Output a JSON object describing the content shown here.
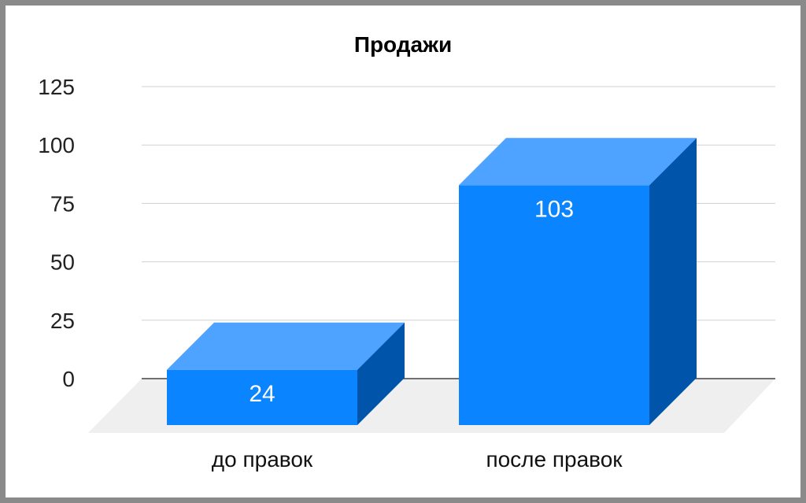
{
  "chart_data": {
    "type": "bar",
    "title": "Продажи",
    "categories": [
      "до правок",
      "после правок"
    ],
    "values": [
      24,
      103
    ],
    "data_labels": [
      "24",
      "103"
    ],
    "xlabel": "",
    "ylabel": "",
    "ylim": [
      0,
      125
    ],
    "yticks": [
      "0",
      "25",
      "50",
      "75",
      "100",
      "125"
    ],
    "grid": true,
    "style": "3d",
    "colors": {
      "front": "#0a84ff",
      "top": "#4da3ff",
      "side": "#0055aa",
      "floor": "#efefef",
      "grid": "#d0d0d0",
      "baseline": "#444444",
      "frame": "#8a8a8a"
    }
  }
}
